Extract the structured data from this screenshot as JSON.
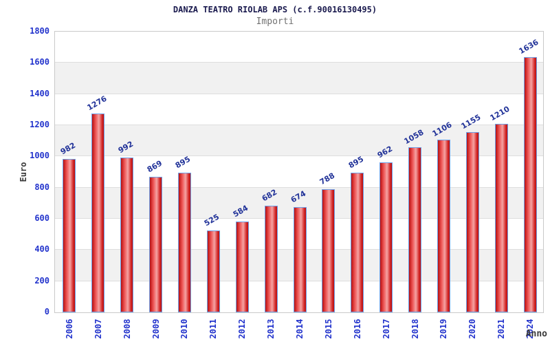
{
  "header": {
    "title": "DANZA TEATRO RIOLAB APS (c.f.90016130495)",
    "subtitle": "Importi"
  },
  "chart_data": {
    "type": "bar",
    "title": "DANZA TEATRO RIOLAB APS (c.f.90016130495)",
    "subtitle": "Importi",
    "xlabel": "Anno",
    "ylabel": "Euro",
    "categories": [
      "2006",
      "2007",
      "2008",
      "2009",
      "2010",
      "2011",
      "2012",
      "2013",
      "2014",
      "2015",
      "2016",
      "2017",
      "2018",
      "2019",
      "2020",
      "2021",
      "2024"
    ],
    "values": [
      982,
      1276,
      992,
      869,
      895,
      525,
      584,
      682,
      674,
      788,
      895,
      962,
      1058,
      1106,
      1155,
      1210,
      1636
    ],
    "ylim": [
      0,
      1800
    ],
    "ytick_step": 200,
    "grid": true,
    "legend": "none",
    "band_stripes": true,
    "colors": {
      "bar_fill_dark": "#b80f0f",
      "bar_fill_light": "#f5a3a3",
      "bar_border": "#6ca0e8",
      "tick_label": "#2233cc",
      "value_label": "#223399",
      "axis_title": "#3a3a3a",
      "title": "#1a1a4e",
      "subtitle": "#707070",
      "band_gray": "#f1f1f1",
      "gridline": "#dedede"
    }
  }
}
